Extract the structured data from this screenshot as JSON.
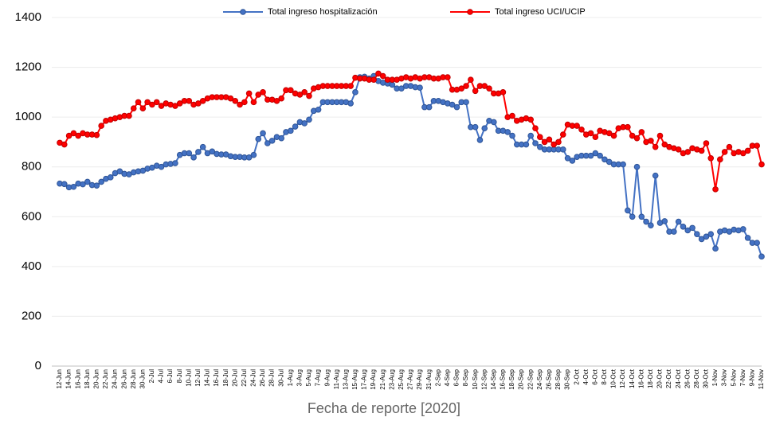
{
  "chart_data": {
    "type": "line",
    "xlabel": "Fecha de reporte [2020]",
    "categories": [
      "12-Jun",
      null,
      "14-Jun",
      null,
      "16-Jun",
      null,
      "18-Jun",
      null,
      "20-Jun",
      null,
      "22-Jun",
      null,
      "24-Jun",
      null,
      "26-Jun",
      null,
      "28-Jun",
      null,
      "30-Jun",
      null,
      "2-Jul",
      null,
      "4-Jul",
      null,
      "6-Jul",
      null,
      "8-Jul",
      null,
      "10-Jul",
      null,
      "12-Jul",
      null,
      "14-Jul",
      null,
      "16-Jul",
      null,
      "18-Jul",
      null,
      "20-Jul",
      null,
      "22-Jul",
      null,
      "24-Jul",
      null,
      "26-Jul",
      null,
      "28-Jul",
      null,
      "30-Jul",
      null,
      "1-Aug",
      null,
      "3-Aug",
      null,
      "5-Aug",
      null,
      "7-Aug",
      null,
      "9-Aug",
      null,
      "11-Aug",
      null,
      "13-Aug",
      null,
      "15-Aug",
      null,
      "17-Aug",
      null,
      "19-Aug",
      null,
      "21-Aug",
      null,
      "23-Aug",
      null,
      "25-Aug",
      null,
      "27-Aug",
      null,
      "29-Aug",
      null,
      "31-Aug",
      null,
      "2-Sep",
      null,
      "4-Sep",
      null,
      "6-Sep",
      null,
      "8-Sep",
      null,
      "10-Sep",
      null,
      "12-Sep",
      null,
      "14-Sep",
      null,
      "16-Sep",
      null,
      "18-Sep",
      null,
      "20-Sep",
      null,
      "22-Sep",
      null,
      "24-Sep",
      null,
      "26-Sep",
      null,
      "28-Sep",
      null,
      "30-Sep",
      null,
      "2-Oct",
      null,
      "4-Oct",
      null,
      "6-Oct",
      null,
      "8-Oct",
      null,
      "10-Oct",
      null,
      "12-Oct",
      null,
      "14-Oct",
      null,
      "16-Oct",
      null,
      "18-Oct",
      null,
      "20-Oct",
      null,
      "22-Oct",
      null,
      "24-Oct",
      null,
      "26-Oct",
      null,
      "28-Oct",
      null,
      "30-Oct",
      null,
      "1-Nov",
      null,
      "3-Nov",
      null,
      "5-Nov",
      null,
      "7-Nov",
      null,
      "9-Nov",
      null,
      "11-Nov"
    ],
    "series": [
      {
        "name": "Total ingreso hospitalización",
        "color": "#4472c4",
        "values": [
          733,
          731,
          718,
          720,
          733,
          730,
          740,
          727,
          725,
          740,
          752,
          758,
          775,
          782,
          772,
          770,
          778,
          782,
          785,
          793,
          797,
          805,
          800,
          810,
          812,
          815,
          848,
          855,
          855,
          838,
          860,
          880,
          855,
          862,
          852,
          850,
          850,
          843,
          840,
          840,
          838,
          838,
          848,
          912,
          935,
          895,
          905,
          920,
          915,
          940,
          945,
          962,
          980,
          975,
          990,
          1025,
          1030,
          1060,
          1060,
          1060,
          1060,
          1060,
          1060,
          1055,
          1100,
          1160,
          1162,
          1155,
          1165,
          1145,
          1138,
          1135,
          1130,
          1115,
          1115,
          1125,
          1125,
          1120,
          1118,
          1040,
          1040,
          1065,
          1065,
          1060,
          1055,
          1050,
          1040,
          1060,
          1060,
          960,
          960,
          908,
          955,
          985,
          980,
          945,
          945,
          940,
          925,
          890,
          890,
          890,
          925,
          895,
          880,
          870,
          870,
          870,
          870,
          870,
          835,
          825,
          840,
          845,
          845,
          845,
          855,
          845,
          830,
          820,
          810,
          810,
          810,
          625,
          600,
          800,
          600,
          580,
          565,
          765,
          575,
          582,
          540,
          540,
          580,
          560,
          545,
          555,
          530,
          510,
          520,
          530,
          472,
          540,
          545,
          540,
          548,
          545,
          550,
          515,
          495,
          495,
          440
        ]
      },
      {
        "name": "Total ingreso UCI/UCIP",
        "color": "#ff0000",
        "values": [
          897,
          890,
          925,
          935,
          925,
          935,
          930,
          930,
          928,
          965,
          985,
          990,
          995,
          1000,
          1005,
          1005,
          1035,
          1060,
          1035,
          1060,
          1050,
          1060,
          1045,
          1055,
          1050,
          1045,
          1055,
          1065,
          1065,
          1050,
          1055,
          1065,
          1075,
          1080,
          1080,
          1080,
          1080,
          1075,
          1065,
          1050,
          1060,
          1095,
          1060,
          1090,
          1100,
          1070,
          1070,
          1065,
          1075,
          1108,
          1108,
          1095,
          1090,
          1100,
          1085,
          1115,
          1120,
          1125,
          1125,
          1125,
          1125,
          1125,
          1125,
          1125,
          1158,
          1155,
          1155,
          1150,
          1150,
          1175,
          1165,
          1150,
          1150,
          1150,
          1155,
          1160,
          1155,
          1160,
          1155,
          1160,
          1160,
          1155,
          1155,
          1160,
          1160,
          1110,
          1110,
          1115,
          1125,
          1150,
          1105,
          1125,
          1125,
          1115,
          1095,
          1095,
          1100,
          1000,
          1005,
          985,
          990,
          995,
          990,
          955,
          920,
          900,
          910,
          890,
          900,
          930,
          970,
          965,
          965,
          950,
          930,
          935,
          920,
          945,
          940,
          935,
          925,
          955,
          960,
          960,
          925,
          915,
          940,
          900,
          905,
          880,
          925,
          890,
          880,
          875,
          870,
          855,
          860,
          875,
          870,
          865,
          895,
          835,
          710,
          830,
          860,
          880,
          855,
          860,
          855,
          865,
          885,
          885,
          810
        ]
      }
    ],
    "ylim": [
      0,
      1400
    ],
    "yticks": [
      0,
      200,
      400,
      600,
      800,
      1000,
      1200,
      1400
    ],
    "grid": true,
    "legend": "top"
  }
}
